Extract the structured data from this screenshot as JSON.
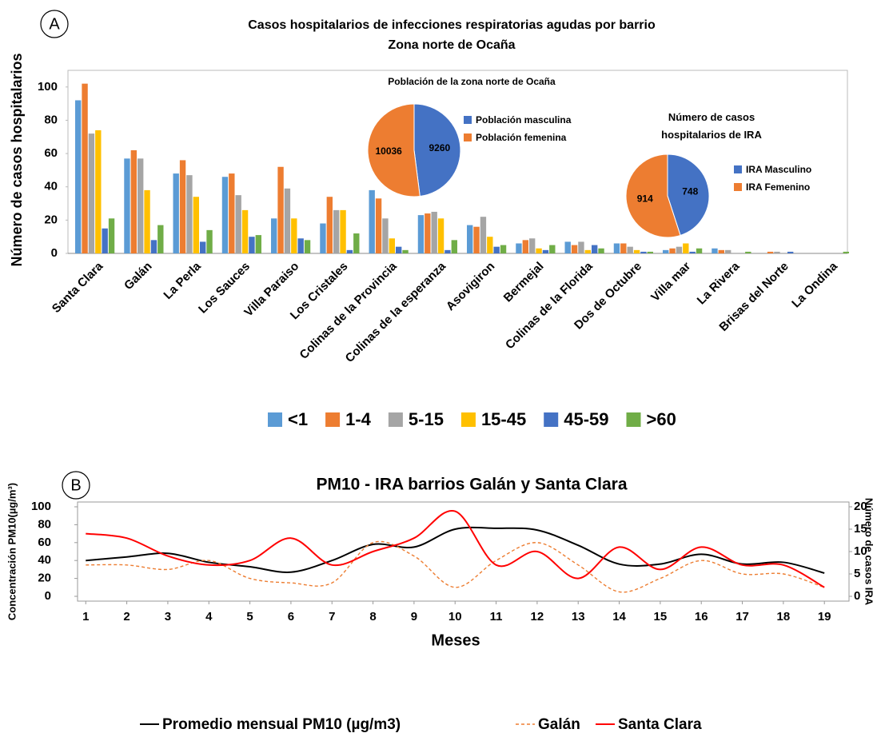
{
  "chart_data": [
    {
      "type": "bar",
      "panel_label": "A",
      "title": "Casos hospitalarios de infecciones respiratorias agudas por barrio",
      "subtitle": "Zona norte de Ocaña",
      "ylabel": "Número de casos hospitalarios",
      "categories": [
        "Santa Clara",
        "Galán",
        "La Perla",
        "Los Sauces",
        "Villa Paraiso",
        "Los Cristales",
        "Colinas de la Provincia",
        "Colinas de la esperanza",
        "Asovigiron",
        "Bermejal",
        "Colinas de la Florida",
        "Dos de Octubre",
        "Villa mar",
        "La Rivera",
        "Brisas del Norte",
        "La Ondina"
      ],
      "series": [
        {
          "name": "<1",
          "color": "#5b9bd5",
          "values": [
            92,
            57,
            48,
            46,
            21,
            18,
            38,
            23,
            17,
            6,
            7,
            6,
            2,
            3,
            0,
            0
          ]
        },
        {
          "name": "1-4",
          "color": "#ed7d31",
          "values": [
            102,
            62,
            56,
            48,
            52,
            34,
            33,
            24,
            16,
            8,
            5,
            6,
            3,
            2,
            1,
            0
          ]
        },
        {
          "name": "5-15",
          "color": "#a5a5a5",
          "values": [
            72,
            57,
            47,
            35,
            39,
            26,
            21,
            25,
            22,
            9,
            7,
            4,
            4,
            2,
            1,
            0
          ]
        },
        {
          "name": "15-45",
          "color": "#ffc000",
          "values": [
            74,
            38,
            34,
            26,
            21,
            26,
            9,
            21,
            10,
            3,
            2,
            2,
            6,
            0,
            0,
            0
          ]
        },
        {
          "name": "45-59",
          "color": "#4472c4",
          "values": [
            15,
            8,
            7,
            10,
            9,
            2,
            4,
            2,
            4,
            2,
            5,
            1,
            1,
            0,
            1,
            0
          ]
        },
        {
          "name": ">60",
          "color": "#70ad47",
          "values": [
            21,
            17,
            14,
            11,
            8,
            12,
            2,
            8,
            5,
            5,
            3,
            1,
            3,
            1,
            0,
            1
          ]
        }
      ],
      "ylim": [
        0,
        110
      ],
      "yticks": [
        0,
        20,
        40,
        60,
        80,
        100
      ],
      "grid": false
    },
    {
      "type": "pie",
      "title": "Población de la zona norte de Ocaña",
      "labels": [
        "Población masculina",
        "Población femenina"
      ],
      "values": [
        9260,
        10036
      ],
      "colors": [
        "#4472c4",
        "#ed7d31"
      ]
    },
    {
      "type": "pie",
      "title": "Número de casos hospitalarios de IRA",
      "labels": [
        "IRA Masculino",
        "IRA Femenino"
      ],
      "values": [
        748,
        914
      ],
      "colors": [
        "#4472c4",
        "#ed7d31"
      ]
    },
    {
      "type": "line",
      "panel_label": "B",
      "title": "PM10 - IRA barrios Galán y Santa Clara",
      "xlabel": "Meses",
      "ylabel": "Concentración PM10(µg/m³)",
      "y2label": "Número de casos IRA",
      "x": [
        1,
        2,
        3,
        4,
        5,
        6,
        7,
        8,
        9,
        10,
        11,
        12,
        13,
        14,
        15,
        16,
        17,
        18,
        19
      ],
      "series": [
        {
          "name": "Promedio mensual PM10 (µg/m3)",
          "color": "#000000",
          "dashed": false,
          "values": [
            40,
            44,
            48,
            38,
            33,
            27,
            40,
            58,
            55,
            75,
            76,
            74,
            57,
            36,
            36,
            47,
            36,
            38,
            26
          ]
        },
        {
          "name": "Galán",
          "color": "#ed7d31",
          "dashed": true,
          "axis": "y2",
          "values": [
            7,
            7,
            6,
            8,
            4,
            3,
            3,
            12,
            9,
            2,
            8,
            12,
            7,
            1,
            4,
            8,
            5,
            5,
            2
          ]
        },
        {
          "name": "Santa Clara",
          "color": "#ff0000",
          "dashed": false,
          "axis": "y2",
          "values": [
            14,
            13,
            9,
            7,
            8,
            13,
            7,
            10,
            13,
            19,
            7,
            10,
            4,
            11,
            6,
            11,
            7,
            7,
            2
          ]
        }
      ],
      "xlim": [
        0.8,
        19.6
      ],
      "xticks": [
        1,
        2,
        3,
        4,
        5,
        6,
        7,
        8,
        9,
        10,
        11,
        12,
        13,
        14,
        15,
        16,
        17,
        18,
        19
      ],
      "ylim": [
        0,
        100
      ],
      "yticks": [
        0,
        20,
        40,
        60,
        80,
        100
      ],
      "y2lim": [
        0,
        20
      ],
      "y2ticks": [
        0,
        5,
        10,
        15,
        20
      ],
      "smooth": true,
      "grid": false
    }
  ]
}
